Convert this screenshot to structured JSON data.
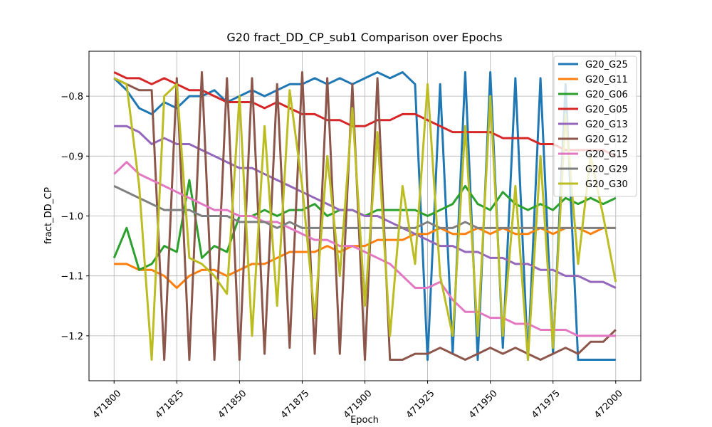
{
  "chart_data": {
    "type": "line",
    "title": "G20 fract_DD_CP_sub1 Comparison over Epochs",
    "xlabel": "Epoch",
    "ylabel": "fract_DD_CP",
    "x": [
      471800,
      471805,
      471810,
      471815,
      471820,
      471825,
      471830,
      471835,
      471840,
      471845,
      471850,
      471855,
      471860,
      471865,
      471870,
      471875,
      471880,
      471885,
      471890,
      471895,
      471900,
      471905,
      471910,
      471915,
      471920,
      471925,
      471930,
      471935,
      471940,
      471945,
      471950,
      471955,
      471960,
      471965,
      471970,
      471975,
      471980,
      471985,
      471990,
      471995,
      472000
    ],
    "xlim": [
      471790,
      472010
    ],
    "xticks": [
      471800,
      471825,
      471850,
      471875,
      471900,
      471925,
      471950,
      471975,
      472000
    ],
    "ylim": [
      -1.275,
      -0.725
    ],
    "yticks": [
      {
        "value": -1.2,
        "label": "−1.2"
      },
      {
        "value": -1.1,
        "label": "−1.1"
      },
      {
        "value": -1.0,
        "label": "−1.0"
      },
      {
        "value": -0.9,
        "label": "−0.9"
      },
      {
        "value": -0.8,
        "label": "−0.8"
      }
    ],
    "grid": true,
    "legend": "upper right",
    "series": [
      {
        "name": "G20_G25",
        "color": "#1f77b4",
        "values": [
          -0.77,
          -0.79,
          -0.82,
          -0.83,
          -0.81,
          -0.82,
          -0.8,
          -0.8,
          -0.79,
          -0.81,
          -0.8,
          -0.79,
          -0.8,
          -0.79,
          -0.78,
          -0.78,
          -0.77,
          -0.78,
          -0.77,
          -0.78,
          -0.77,
          -0.76,
          -0.77,
          -0.76,
          -0.78,
          -1.24,
          -0.78,
          -1.23,
          -0.76,
          -1.24,
          -0.76,
          -1.22,
          -0.77,
          -1.24,
          -0.77,
          -1.23,
          -0.78,
          -1.24,
          -1.24,
          -1.24,
          -1.24
        ]
      },
      {
        "name": "G20_G11",
        "color": "#ff7f0e",
        "values": [
          -1.08,
          -1.08,
          -1.09,
          -1.09,
          -1.1,
          -1.12,
          -1.1,
          -1.09,
          -1.09,
          -1.1,
          -1.09,
          -1.08,
          -1.08,
          -1.07,
          -1.06,
          -1.06,
          -1.06,
          -1.05,
          -1.06,
          -1.05,
          -1.05,
          -1.04,
          -1.04,
          -1.04,
          -1.03,
          -1.03,
          -1.02,
          -1.03,
          -1.03,
          -1.02,
          -1.03,
          -1.02,
          -1.03,
          -1.03,
          -1.02,
          -1.03,
          -1.02,
          -1.02,
          -1.03,
          -1.02,
          -1.02
        ]
      },
      {
        "name": "G20_G06",
        "color": "#2ca02c",
        "values": [
          -1.07,
          -1.02,
          -1.09,
          -1.08,
          -1.05,
          -1.06,
          -0.94,
          -1.07,
          -1.05,
          -1.06,
          -1.0,
          -1.0,
          -0.99,
          -1.0,
          -0.99,
          -0.99,
          -0.98,
          -1.0,
          -0.99,
          -0.99,
          -1.0,
          -0.99,
          -0.99,
          -0.99,
          -0.99,
          -1.0,
          -0.99,
          -0.98,
          -0.95,
          -0.98,
          -0.99,
          -0.96,
          -0.98,
          -0.99,
          -0.98,
          -0.99,
          -0.97,
          -0.98,
          -0.97,
          -0.98,
          -0.97
        ]
      },
      {
        "name": "G20_G05",
        "color": "#d62728",
        "values": [
          -0.76,
          -0.77,
          -0.77,
          -0.78,
          -0.77,
          -0.78,
          -0.79,
          -0.79,
          -0.8,
          -0.81,
          -0.81,
          -0.81,
          -0.82,
          -0.81,
          -0.82,
          -0.83,
          -0.83,
          -0.84,
          -0.84,
          -0.85,
          -0.85,
          -0.84,
          -0.84,
          -0.83,
          -0.83,
          -0.84,
          -0.85,
          -0.86,
          -0.86,
          -0.86,
          -0.86,
          -0.87,
          -0.87,
          -0.87,
          -0.88,
          -0.88,
          -0.89,
          -0.89,
          -0.89,
          -0.89,
          -0.9
        ]
      },
      {
        "name": "G20_G13",
        "color": "#9467bd",
        "values": [
          -0.85,
          -0.85,
          -0.86,
          -0.88,
          -0.87,
          -0.88,
          -0.88,
          -0.89,
          -0.9,
          -0.91,
          -0.92,
          -0.92,
          -0.93,
          -0.94,
          -0.95,
          -0.96,
          -0.97,
          -0.98,
          -0.99,
          -0.99,
          -1.0,
          -1.0,
          -1.01,
          -1.02,
          -1.03,
          -1.04,
          -1.05,
          -1.05,
          -1.06,
          -1.06,
          -1.07,
          -1.07,
          -1.08,
          -1.08,
          -1.09,
          -1.09,
          -1.1,
          -1.1,
          -1.11,
          -1.11,
          -1.12
        ]
      },
      {
        "name": "G20_G12",
        "color": "#8c564b",
        "values": [
          -0.77,
          -0.78,
          -0.79,
          -0.79,
          -1.24,
          -0.77,
          -1.24,
          -0.76,
          -1.24,
          -0.77,
          -1.24,
          -0.77,
          -1.23,
          -0.78,
          -1.22,
          -0.76,
          -1.23,
          -0.77,
          -1.23,
          -0.78,
          -1.24,
          -0.77,
          -1.24,
          -1.24,
          -1.23,
          -1.23,
          -1.22,
          -1.23,
          -1.24,
          -1.23,
          -1.22,
          -1.23,
          -1.22,
          -1.23,
          -1.24,
          -1.23,
          -1.22,
          -1.23,
          -1.21,
          -1.21,
          -1.19
        ]
      },
      {
        "name": "G20_G15",
        "color": "#e377c2",
        "values": [
          -0.93,
          -0.91,
          -0.93,
          -0.94,
          -0.95,
          -0.96,
          -0.97,
          -0.98,
          -0.99,
          -0.99,
          -1.0,
          -1.0,
          -1.01,
          -1.01,
          -1.02,
          -1.03,
          -1.04,
          -1.04,
          -1.05,
          -1.05,
          -1.06,
          -1.07,
          -1.08,
          -1.1,
          -1.12,
          -1.12,
          -1.11,
          -1.14,
          -1.16,
          -1.16,
          -1.17,
          -1.17,
          -1.18,
          -1.18,
          -1.19,
          -1.19,
          -1.19,
          -1.2,
          -1.2,
          -1.2,
          -1.2
        ]
      },
      {
        "name": "G20_G29",
        "color": "#7f7f7f",
        "values": [
          -0.95,
          -0.96,
          -0.97,
          -0.98,
          -0.99,
          -0.99,
          -0.99,
          -1.0,
          -1.0,
          -1.0,
          -1.01,
          -1.01,
          -1.01,
          -1.02,
          -1.01,
          -1.02,
          -1.02,
          -1.02,
          -1.02,
          -1.02,
          -1.02,
          -1.02,
          -1.02,
          -1.02,
          -1.02,
          -1.01,
          -1.02,
          -1.02,
          -1.01,
          -1.02,
          -1.02,
          -1.02,
          -1.02,
          -1.02,
          -1.02,
          -1.02,
          -1.02,
          -1.02,
          -1.02,
          -1.02,
          -1.02
        ]
      },
      {
        "name": "G20_G30",
        "color": "#bcbd22",
        "values": [
          -0.77,
          -0.78,
          -0.95,
          -1.24,
          -0.8,
          -0.78,
          -1.07,
          -1.08,
          -1.1,
          -1.13,
          -0.8,
          -1.2,
          -0.85,
          -1.15,
          -0.79,
          -0.95,
          -1.17,
          -0.9,
          -1.1,
          -0.82,
          -1.15,
          -0.86,
          -1.2,
          -0.95,
          -1.08,
          -0.78,
          -1.1,
          -1.2,
          -0.85,
          -1.2,
          -0.8,
          -1.2,
          -0.95,
          -1.24,
          -0.9,
          -1.22,
          -0.83,
          -1.08,
          -0.9,
          -1.0,
          -1.11
        ]
      }
    ]
  }
}
